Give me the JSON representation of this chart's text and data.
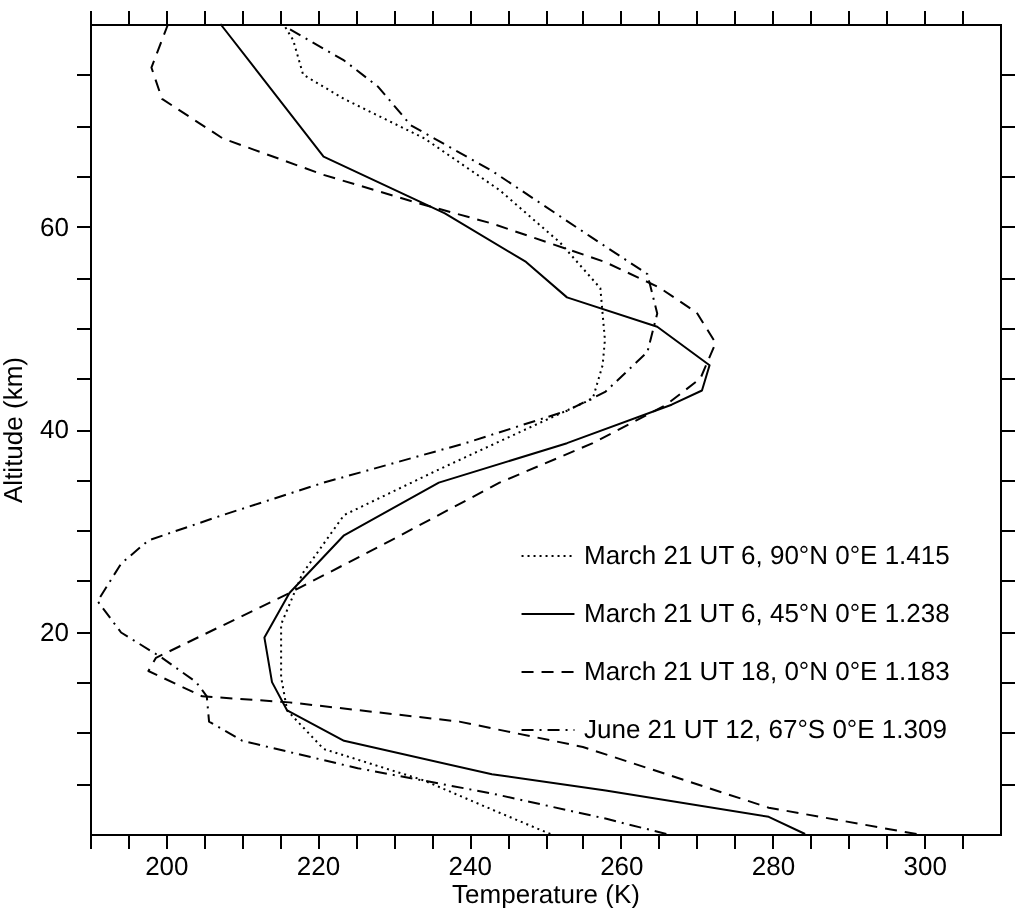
{
  "chart_data": {
    "type": "line",
    "xlabel": "Temperature (K)",
    "ylabel": "Altitude (km)",
    "xlim": [
      190,
      310
    ],
    "ylim": [
      0,
      80
    ],
    "xticks": [
      {
        "value": 190,
        "label": null
      },
      {
        "value": 195,
        "label": null
      },
      200,
      {
        "value": 205,
        "label": null
      },
      {
        "value": 210,
        "label": null
      },
      {
        "value": 215,
        "label": null
      },
      220,
      {
        "value": 225,
        "label": null
      },
      {
        "value": 230,
        "label": null
      },
      {
        "value": 235,
        "label": null
      },
      240,
      {
        "value": 245,
        "label": null
      },
      {
        "value": 250,
        "label": null
      },
      {
        "value": 255,
        "label": null
      },
      260,
      {
        "value": 265,
        "label": null
      },
      {
        "value": 270,
        "label": null
      },
      {
        "value": 275,
        "label": null
      },
      280,
      {
        "value": 285,
        "label": null
      },
      {
        "value": 290,
        "label": null
      },
      {
        "value": 295,
        "label": null
      },
      300,
      {
        "value": 305,
        "label": null
      }
    ],
    "yticks": [
      {
        "value": 5,
        "label": null
      },
      {
        "value": 10,
        "label": null
      },
      {
        "value": 15,
        "label": null
      },
      20,
      {
        "value": 25,
        "label": null
      },
      {
        "value": 30,
        "label": null
      },
      {
        "value": 35,
        "label": null
      },
      40,
      {
        "value": 45,
        "label": null
      },
      {
        "value": 50,
        "label": null
      },
      {
        "value": 55,
        "label": null
      },
      60,
      {
        "value": 65,
        "label": null
      },
      {
        "value": 70,
        "label": null
      },
      {
        "value": 75,
        "label": null
      }
    ],
    "legend": "right",
    "grid": false,
    "series": [
      {
        "name": "March 21 UT 6, 90°N 0°E      1.415",
        "color": "#000000",
        "line_style": "dotted",
        "x": [
          250.7,
          244,
          234,
          220.8,
          216,
          215.2,
          215.2,
          218,
          223.5,
          236,
          249,
          256.3,
          257.6,
          257.9,
          257.3,
          252,
          244,
          234.1,
          223.5,
          218.1,
          216.8,
          215.5
        ],
        "values": [
          0,
          2.1,
          5.3,
          8.4,
          12.2,
          15.5,
          20.7,
          25.7,
          31.5,
          36,
          40.5,
          43,
          46.3,
          48.8,
          53.9,
          58.4,
          63.6,
          68.7,
          72.6,
          75,
          78.4,
          80
        ]
      },
      {
        "name": "March 21 UT 6, 45°N 0°E      1.238",
        "color": "#000000",
        "line_style": "solid",
        "x": [
          284.3,
          279.5,
          258,
          243,
          223.5,
          216,
          214,
          213,
          216.3,
          223.5,
          236,
          252.9,
          266.7,
          270.7,
          271.7,
          264.8,
          252.9,
          247.5,
          236.8,
          220.8,
          207.2
        ],
        "values": [
          0,
          1.7,
          4.3,
          5.9,
          9.2,
          12.2,
          15,
          19.4,
          23.8,
          29.5,
          34.7,
          38.6,
          42.4,
          43.8,
          46.3,
          50.1,
          53,
          56.5,
          61.3,
          66.9,
          80
        ]
      },
      {
        "name": "March 21 UT 18,  0°N 0°E      1.183",
        "color": "#000000",
        "line_style": "dashed",
        "x": [
          299,
          279.5,
          255,
          238.7,
          216.3,
          204.8,
          197.7,
          198.7,
          216.3,
          229.7,
          244,
          256.3,
          266,
          270.5,
          272.5,
          270,
          265,
          257.9,
          243,
          233.3,
          220.8,
          207.5,
          199.5,
          198.1,
          200.3
        ],
        "values": [
          0,
          2.6,
          8.6,
          11.1,
          13,
          13.6,
          16.1,
          17.4,
          23.8,
          29,
          34.7,
          38.6,
          42.4,
          45,
          48.5,
          51.5,
          54,
          56.5,
          60.3,
          62.3,
          65.1,
          68.7,
          72.6,
          75.7,
          80
        ]
      },
      {
        "name": "June 21 UT 12, 67°S 0°E      1.309",
        "color": "#000000",
        "line_style": "dashdot",
        "x": [
          266,
          258.1,
          243,
          225.3,
          210.1,
          205.7,
          205.4,
          204,
          199.5,
          194.1,
          191,
          194.1,
          197.7,
          207.5,
          220.8,
          239.5,
          252.9,
          258,
          263.5,
          264.8,
          263.5,
          256,
          243,
          232.3,
          228,
          223.5,
          216.3
        ],
        "values": [
          0,
          1.5,
          4,
          6.5,
          9.2,
          11.1,
          13.6,
          15,
          17.4,
          19.9,
          23,
          26.7,
          29,
          31.5,
          34.7,
          38.6,
          41.8,
          43.7,
          47.6,
          51.4,
          55.3,
          59,
          65.5,
          70,
          73.8,
          76.4,
          79.5
        ]
      }
    ]
  }
}
